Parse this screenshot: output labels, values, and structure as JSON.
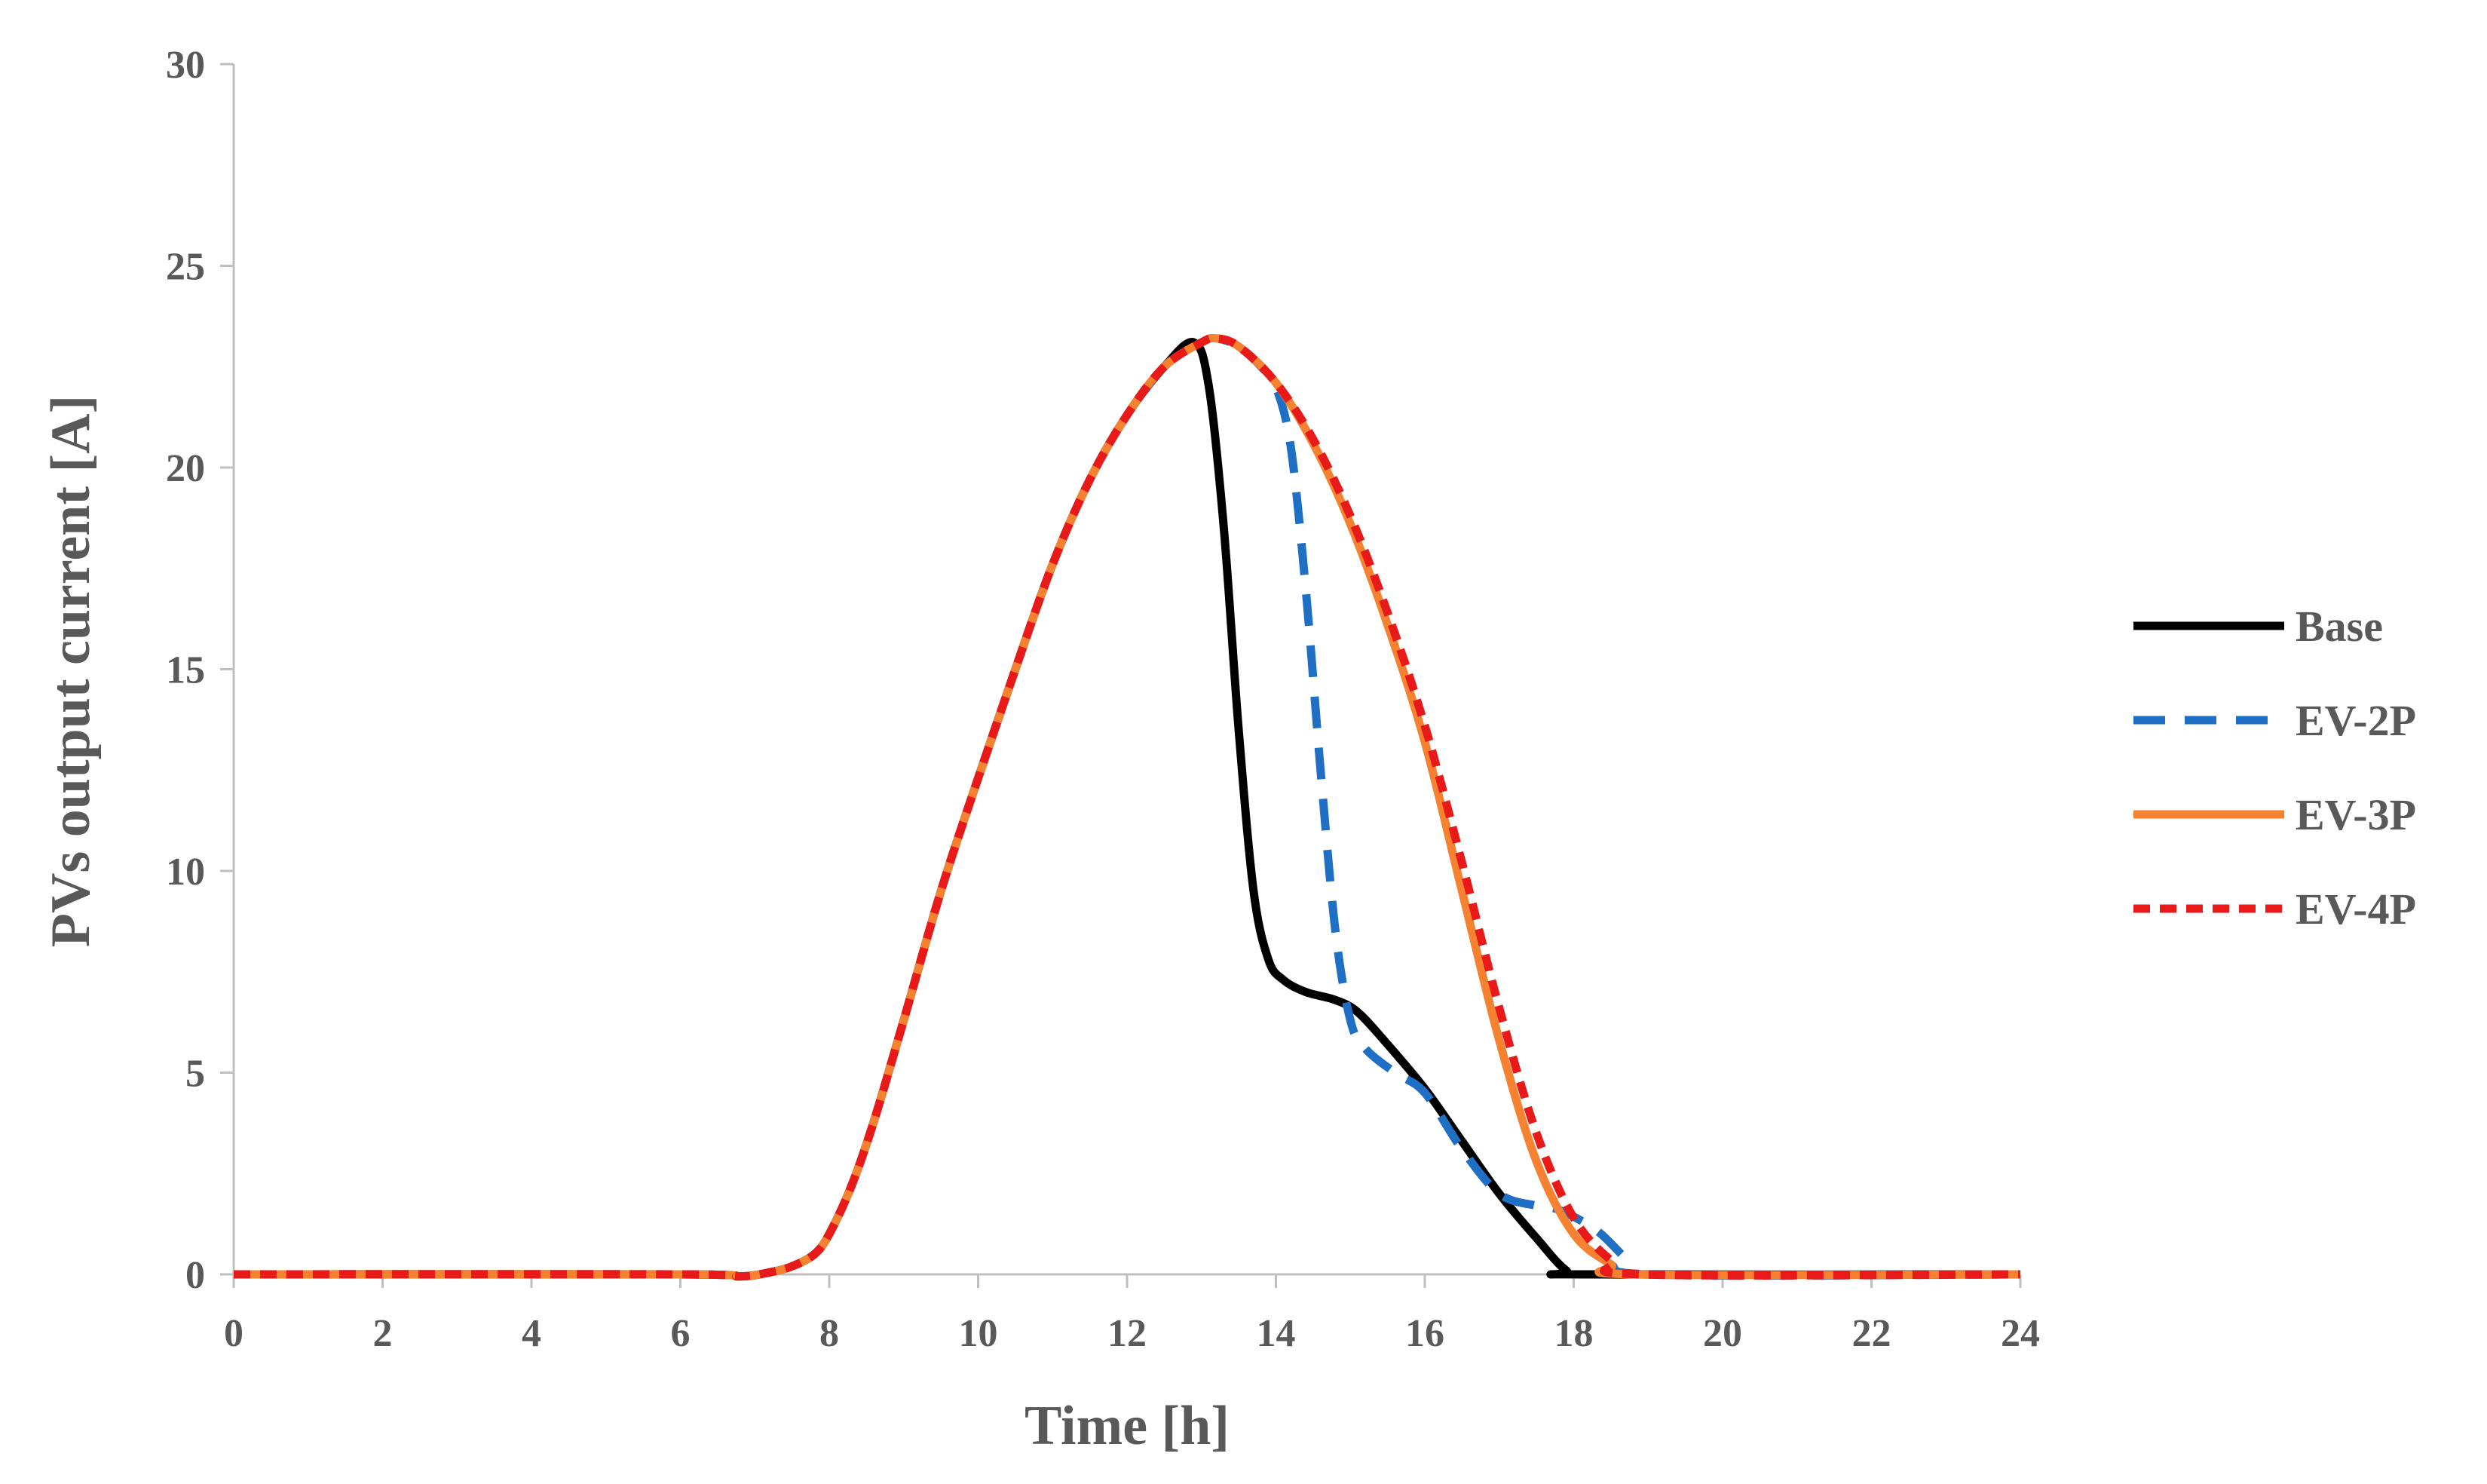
{
  "chart_data": {
    "type": "line",
    "title": "",
    "xlabel": "Time [h]",
    "ylabel": "PVs output current [A]",
    "xlim": [
      0,
      24
    ],
    "ylim": [
      0,
      30
    ],
    "xticks": [
      0,
      2,
      4,
      6,
      8,
      10,
      12,
      14,
      16,
      18,
      20,
      22,
      24
    ],
    "yticks": [
      0,
      5,
      10,
      15,
      20,
      25,
      30
    ],
    "grid": false,
    "legend_position": "right",
    "series": [
      {
        "name": "Base",
        "color": "#000000",
        "dash": "solid",
        "points": [
          [
            0,
            0
          ],
          [
            6,
            0
          ],
          [
            6.8,
            -0.05
          ],
          [
            7.2,
            0.05
          ],
          [
            7.5,
            0.2
          ],
          [
            7.8,
            0.5
          ],
          [
            8,
            1.0
          ],
          [
            8.3,
            2.2
          ],
          [
            8.6,
            3.8
          ],
          [
            9,
            6.3
          ],
          [
            9.5,
            9.5
          ],
          [
            10,
            12.3
          ],
          [
            10.5,
            15.0
          ],
          [
            11,
            17.6
          ],
          [
            11.5,
            19.7
          ],
          [
            12,
            21.3
          ],
          [
            12.5,
            22.5
          ],
          [
            12.9,
            23.1
          ],
          [
            13.1,
            22.0
          ],
          [
            13.3,
            18.5
          ],
          [
            13.5,
            13.5
          ],
          [
            13.7,
            9.5
          ],
          [
            13.9,
            7.8
          ],
          [
            14.1,
            7.3
          ],
          [
            14.4,
            7.0
          ],
          [
            14.8,
            6.8
          ],
          [
            15.1,
            6.5
          ],
          [
            15.5,
            5.7
          ],
          [
            16,
            4.6
          ],
          [
            16.5,
            3.3
          ],
          [
            17,
            2.0
          ],
          [
            17.5,
            0.9
          ],
          [
            17.9,
            0.1
          ],
          [
            18.2,
            0
          ],
          [
            24,
            0
          ]
        ]
      },
      {
        "name": "EV-2P",
        "color": "#1F6FC5",
        "dash": "dashed",
        "points": [
          [
            0,
            0
          ],
          [
            6,
            0
          ],
          [
            6.8,
            -0.05
          ],
          [
            7.2,
            0.05
          ],
          [
            7.5,
            0.2
          ],
          [
            7.8,
            0.5
          ],
          [
            8,
            1.0
          ],
          [
            8.3,
            2.2
          ],
          [
            8.6,
            3.8
          ],
          [
            9,
            6.3
          ],
          [
            9.5,
            9.5
          ],
          [
            10,
            12.3
          ],
          [
            10.5,
            15.0
          ],
          [
            11,
            17.6
          ],
          [
            11.5,
            19.7
          ],
          [
            12,
            21.3
          ],
          [
            12.5,
            22.5
          ],
          [
            13,
            23.1
          ],
          [
            13.2,
            23.2
          ],
          [
            13.5,
            23.0
          ],
          [
            13.8,
            22.5
          ],
          [
            14,
            22.0
          ],
          [
            14.2,
            20.5
          ],
          [
            14.4,
            17.0
          ],
          [
            14.6,
            12.5
          ],
          [
            14.8,
            8.5
          ],
          [
            15.0,
            6.3
          ],
          [
            15.2,
            5.6
          ],
          [
            15.6,
            5.0
          ],
          [
            16,
            4.5
          ],
          [
            16.5,
            3.1
          ],
          [
            17,
            2.0
          ],
          [
            17.5,
            1.7
          ],
          [
            17.8,
            1.6
          ],
          [
            18.3,
            1.1
          ],
          [
            18.7,
            0.4
          ],
          [
            19.0,
            0
          ],
          [
            24,
            0
          ]
        ]
      },
      {
        "name": "EV-3P",
        "color": "#F58131",
        "dash": "solid",
        "points": [
          [
            0,
            0
          ],
          [
            6,
            0
          ],
          [
            6.8,
            -0.05
          ],
          [
            7.2,
            0.05
          ],
          [
            7.5,
            0.2
          ],
          [
            7.8,
            0.5
          ],
          [
            8,
            1.0
          ],
          [
            8.3,
            2.2
          ],
          [
            8.6,
            3.8
          ],
          [
            9,
            6.3
          ],
          [
            9.5,
            9.5
          ],
          [
            10,
            12.3
          ],
          [
            10.5,
            15.0
          ],
          [
            11,
            17.6
          ],
          [
            11.5,
            19.7
          ],
          [
            12,
            21.3
          ],
          [
            12.5,
            22.5
          ],
          [
            13,
            23.1
          ],
          [
            13.2,
            23.2
          ],
          [
            13.5,
            23.0
          ],
          [
            14,
            22.1
          ],
          [
            14.5,
            20.6
          ],
          [
            15,
            18.6
          ],
          [
            15.5,
            16.1
          ],
          [
            16,
            13.2
          ],
          [
            16.5,
            9.5
          ],
          [
            17,
            5.8
          ],
          [
            17.5,
            2.8
          ],
          [
            18,
            1.0
          ],
          [
            18.5,
            0.25
          ],
          [
            18.8,
            0
          ],
          [
            24,
            0
          ]
        ]
      },
      {
        "name": "EV-4P",
        "color": "#E81919",
        "dash": "dotted",
        "points": [
          [
            0,
            0
          ],
          [
            6,
            0
          ],
          [
            6.8,
            -0.05
          ],
          [
            7.2,
            0.05
          ],
          [
            7.5,
            0.2
          ],
          [
            7.8,
            0.5
          ],
          [
            8,
            1.0
          ],
          [
            8.3,
            2.2
          ],
          [
            8.6,
            3.8
          ],
          [
            9,
            6.3
          ],
          [
            9.5,
            9.5
          ],
          [
            10,
            12.3
          ],
          [
            10.5,
            15.0
          ],
          [
            11,
            17.6
          ],
          [
            11.5,
            19.7
          ],
          [
            12,
            21.3
          ],
          [
            12.5,
            22.5
          ],
          [
            13,
            23.1
          ],
          [
            13.2,
            23.2
          ],
          [
            13.5,
            23.0
          ],
          [
            14,
            22.1
          ],
          [
            14.5,
            20.7
          ],
          [
            15,
            18.8
          ],
          [
            15.5,
            16.4
          ],
          [
            16,
            13.6
          ],
          [
            16.5,
            10.2
          ],
          [
            17,
            6.6
          ],
          [
            17.5,
            3.5
          ],
          [
            18,
            1.4
          ],
          [
            18.5,
            0.35
          ],
          [
            18.9,
            0
          ],
          [
            24,
            0
          ]
        ]
      }
    ]
  }
}
